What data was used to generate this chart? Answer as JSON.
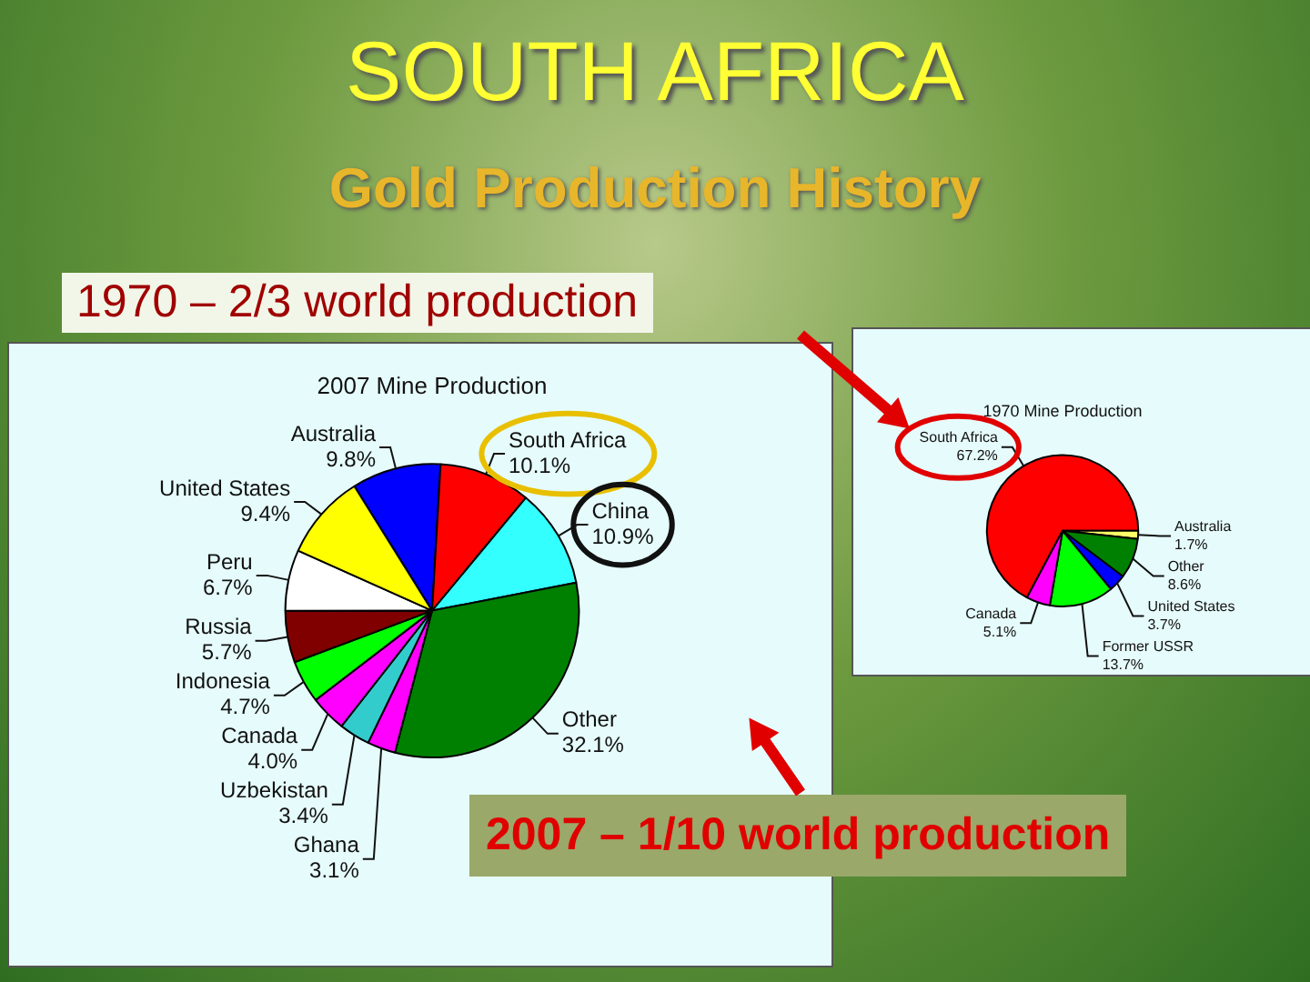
{
  "chart_data": [
    {
      "type": "pie",
      "title": "2007 Mine Production",
      "categories": [
        "Australia",
        "South Africa",
        "China",
        "Other",
        "Ghana",
        "Uzbekistan",
        "Canada",
        "Indonesia",
        "Russia",
        "Peru",
        "United States"
      ],
      "values": [
        9.8,
        10.1,
        10.9,
        32.1,
        3.1,
        3.4,
        4.0,
        4.7,
        5.7,
        6.7,
        9.4
      ],
      "value_labels": [
        "9.8%",
        "10.1%",
        "10.9%",
        "32.1%",
        "3.1%",
        "3.4%",
        "4.0%",
        "4.7%",
        "5.7%",
        "6.7%",
        "9.4%"
      ],
      "colors": [
        "#0000ff",
        "#ff0000",
        "#33ffff",
        "#008000",
        "#ff00ff",
        "#33cccc",
        "#ff00ff",
        "#00ff00",
        "#800000",
        "#ffffff",
        "#ffff00"
      ],
      "annotations": [
        "SOUTH AFRICA",
        "Gold Production History",
        "2007 – 1/10 world production"
      ]
    },
    {
      "type": "pie",
      "title": "1970 Mine Production",
      "categories": [
        "South Africa",
        "Australia",
        "Other",
        "United States",
        "Former USSR",
        "Canada"
      ],
      "values": [
        67.2,
        1.7,
        8.6,
        3.7,
        13.7,
        5.1
      ],
      "value_labels": [
        "67.2%",
        "1.7%",
        "8.6%",
        "3.7%",
        "13.7%",
        "5.1%"
      ],
      "colors": [
        "#ff0000",
        "#ffff66",
        "#008000",
        "#0000ff",
        "#00ff00",
        "#ff00ff"
      ],
      "annotations": [
        "1970 – 2/3 world production"
      ]
    }
  ]
}
